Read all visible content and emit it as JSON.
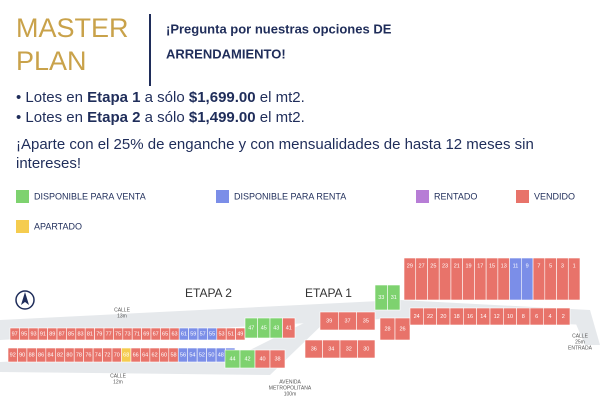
{
  "header": {
    "title_lines": [
      "MASTER",
      "PLAN"
    ],
    "tagline_lines": [
      "¡Pregunta por nuestras opciones DE",
      "ARRENDAMIENTO!"
    ]
  },
  "bullets": [
    {
      "parts": [
        "• Lotes en ",
        "Etapa 1",
        " a sólo ",
        "$1,699.00",
        " el mt2."
      ]
    },
    {
      "parts": [
        "• Lotes en ",
        "Etapa 2",
        " a sólo ",
        "$1,499.00",
        " el mt2."
      ]
    }
  ],
  "promo_lines": [
    "¡Aparte con el 25% de enganche y con mensualidades de hasta 12 meses sin",
    "intereses!"
  ],
  "legend": [
    {
      "label": "DISPONIBLE PARA VENTA",
      "color": "#7ed26f"
    },
    {
      "label": "DISPONIBLE PARA RENTA",
      "color": "#7b8ee8"
    },
    {
      "label": "RENTADO",
      "color": "#b77dd6"
    },
    {
      "label": "VENDIDO",
      "color": "#e8736a"
    },
    {
      "label": "APARTADO",
      "color": "#f5cc4f"
    }
  ],
  "map": {
    "stages": [
      "ETAPA 2",
      "ETAPA 1"
    ],
    "streets": [
      [
        "CALLE",
        "13m"
      ],
      [
        "CALLE",
        "12m"
      ],
      [
        "AVENIDA",
        "METROPOLITANA",
        "100m"
      ],
      [
        "CALLE",
        "25m",
        "ENTRADA"
      ]
    ],
    "lots": [
      {
        "numbers": [
          "97",
          "95",
          "93",
          "91",
          "89",
          "87",
          "85",
          "83",
          "81",
          "79",
          "77",
          "75",
          "73",
          "71",
          "69",
          "67",
          "65",
          "63",
          "61",
          "59",
          "57",
          "55",
          "53",
          "51",
          "49"
        ],
        "colors": [
          "#e8736a",
          "#e8736a",
          "#e8736a",
          "#e8736a",
          "#e8736a",
          "#e8736a",
          "#e8736a",
          "#e8736a",
          "#e8736a",
          "#e8736a",
          "#e8736a",
          "#e8736a",
          "#e8736a",
          "#e8736a",
          "#e8736a",
          "#e8736a",
          "#e8736a",
          "#e8736a",
          "#7b8ee8",
          "#7b8ee8",
          "#7b8ee8",
          "#7b8ee8",
          "#e8736a",
          "#e8736a",
          "#e8736a"
        ]
      },
      {
        "numbers": [
          "92",
          "90",
          "88",
          "86",
          "84",
          "82",
          "80",
          "78",
          "76",
          "74",
          "72",
          "70",
          "68",
          "66",
          "64",
          "62",
          "60",
          "58",
          "56",
          "54",
          "52",
          "50",
          "48",
          "46"
        ],
        "colors": [
          "#e8736a",
          "#e8736a",
          "#e8736a",
          "#e8736a",
          "#e8736a",
          "#e8736a",
          "#e8736a",
          "#e8736a",
          "#e8736a",
          "#e8736a",
          "#e8736a",
          "#e8736a",
          "#f5cc4f",
          "#e8736a",
          "#e8736a",
          "#e8736a",
          "#e8736a",
          "#e8736a",
          "#7b8ee8",
          "#7b8ee8",
          "#7b8ee8",
          "#7b8ee8",
          "#7b8ee8",
          "#7b8ee8"
        ]
      },
      {
        "numbers": [
          "47",
          "45",
          "43",
          "41"
        ],
        "colors": [
          "#7ed26f",
          "#7ed26f",
          "#7ed26f",
          "#e8736a"
        ]
      },
      {
        "numbers": [
          "44",
          "42",
          "40",
          "38"
        ],
        "colors": [
          "#7ed26f",
          "#7ed26f",
          "#e8736a",
          "#e8736a"
        ]
      },
      {
        "numbers": [
          "39",
          "37",
          "35"
        ],
        "colors": [
          "#e8736a",
          "#e8736a",
          "#e8736a"
        ]
      },
      {
        "numbers": [
          "36",
          "34",
          "32",
          "30"
        ],
        "colors": [
          "#e8736a",
          "#e8736a",
          "#e8736a",
          "#e8736a"
        ]
      },
      {
        "numbers": [
          "33",
          "31"
        ],
        "colors": [
          "#7ed26f",
          "#7ed26f"
        ]
      },
      {
        "numbers": [
          "28",
          "26"
        ],
        "colors": [
          "#e8736a",
          "#e8736a"
        ]
      },
      {
        "numbers": [
          "29",
          "27",
          "25",
          "23",
          "21",
          "19",
          "17",
          "15",
          "13",
          "11",
          "9",
          "7",
          "5",
          "3",
          "1"
        ],
        "colors": [
          "#e8736a",
          "#e8736a",
          "#e8736a",
          "#e8736a",
          "#e8736a",
          "#e8736a",
          "#e8736a",
          "#e8736a",
          "#e8736a",
          "#7b8ee8",
          "#7b8ee8",
          "#e8736a",
          "#e8736a",
          "#e8736a",
          "#e8736a"
        ]
      },
      {
        "numbers": [
          "24",
          "22",
          "20",
          "18",
          "16",
          "14",
          "12",
          "10",
          "8",
          "6",
          "4",
          "2"
        ],
        "colors": [
          "#e8736a",
          "#e8736a",
          "#e8736a",
          "#e8736a",
          "#e8736a",
          "#e8736a",
          "#e8736a",
          "#e8736a",
          "#e8736a",
          "#e8736a",
          "#e8736a",
          "#e8736a"
        ]
      }
    ]
  }
}
